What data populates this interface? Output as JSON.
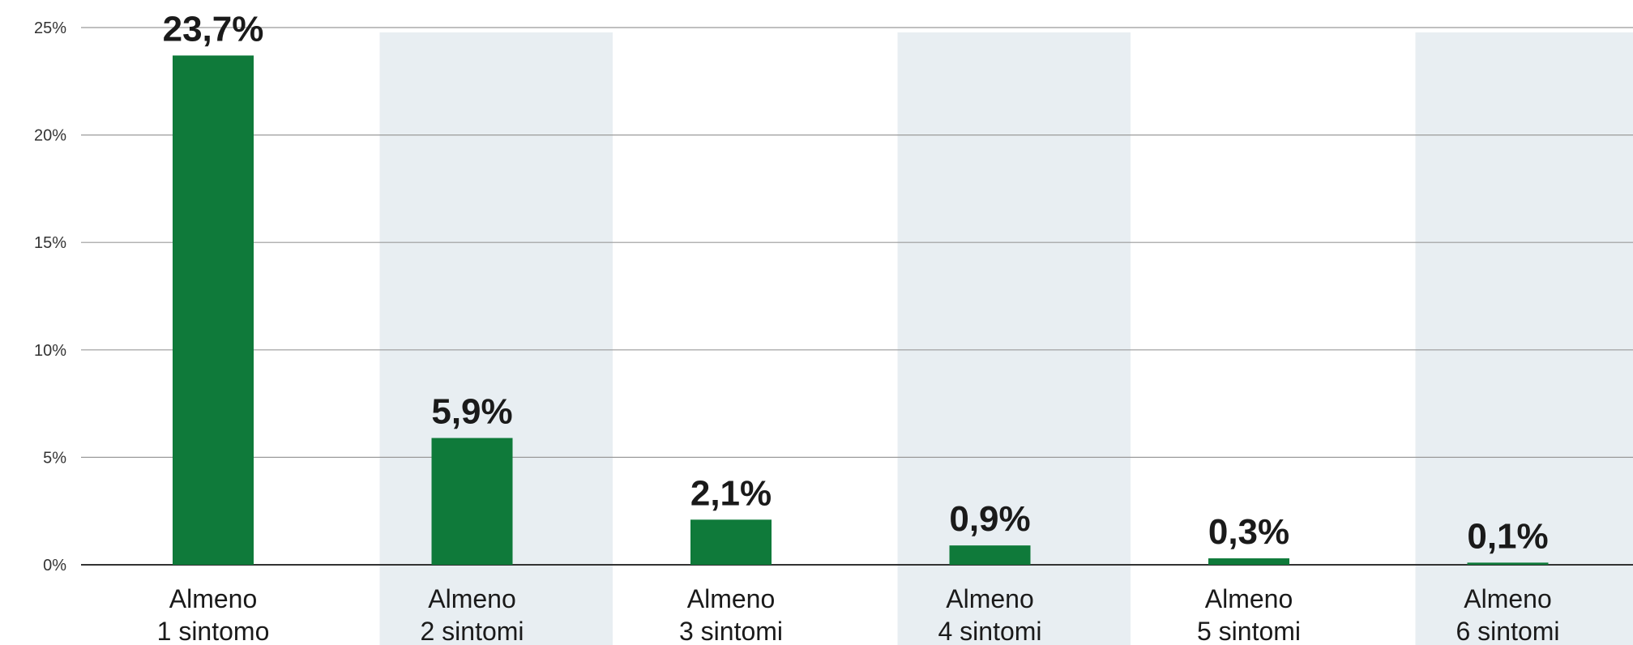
{
  "chart_data": {
    "type": "bar",
    "categories": [
      [
        "Almeno",
        "1 sintomo"
      ],
      [
        "Almeno",
        "2 sintomi"
      ],
      [
        "Almeno",
        "3 sintomi"
      ],
      [
        "Almeno",
        "4 sintomi"
      ],
      [
        "Almeno",
        "5 sintomi"
      ],
      [
        "Almeno",
        "6 sintomi"
      ]
    ],
    "values": [
      23.7,
      5.9,
      2.1,
      0.9,
      0.3,
      0.1
    ],
    "data_labels": [
      "23,7%",
      "5,9%",
      "2,1%",
      "0,9%",
      "0,3%",
      "0,1%"
    ],
    "yticks": [
      0,
      5,
      10,
      15,
      20,
      25
    ],
    "ytick_labels": [
      "0%",
      "5%",
      "10%",
      "15%",
      "20%",
      "25%"
    ],
    "ylim": [
      0,
      25
    ],
    "grid": true,
    "legend": "none",
    "colors": {
      "bar": "#0f7a3a",
      "band": "#e8eef2",
      "grid": "#9a9a9a",
      "axis": "#333333"
    }
  }
}
